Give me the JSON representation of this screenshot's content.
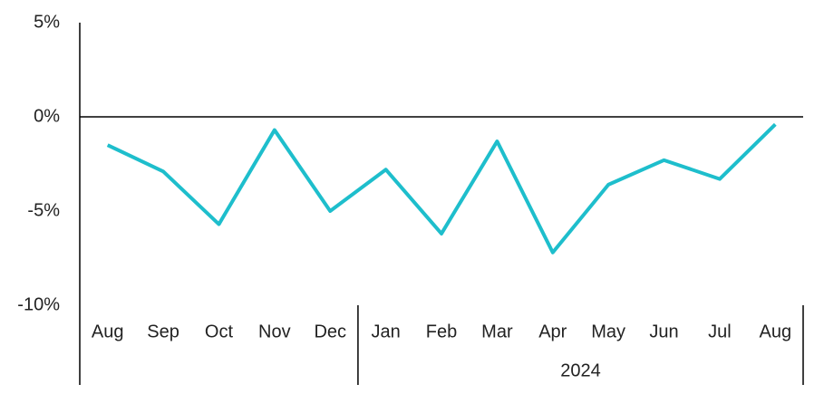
{
  "chart_data": {
    "type": "line",
    "category_groups": [
      {
        "label": null,
        "categories": [
          "Aug",
          "Sep",
          "Oct",
          "Nov",
          "Dec"
        ]
      },
      {
        "label": "2024",
        "categories": [
          "Jan",
          "Feb",
          "Mar",
          "Apr",
          "May",
          "Jun",
          "Jul",
          "Aug"
        ]
      }
    ],
    "values": [
      -1.5,
      -2.9,
      -5.7,
      -0.7,
      -5.0,
      -2.8,
      -6.2,
      -1.3,
      -7.2,
      -3.6,
      -2.3,
      -3.3,
      -0.4
    ],
    "color": "#1ebecc",
    "ylim": [
      -10,
      5
    ],
    "yticks": [
      {
        "value": -10,
        "label": "-10%"
      },
      {
        "value": -5,
        "label": "-5%"
      },
      {
        "value": 0,
        "label": "0%"
      },
      {
        "value": 5,
        "label": "5%"
      }
    ]
  }
}
